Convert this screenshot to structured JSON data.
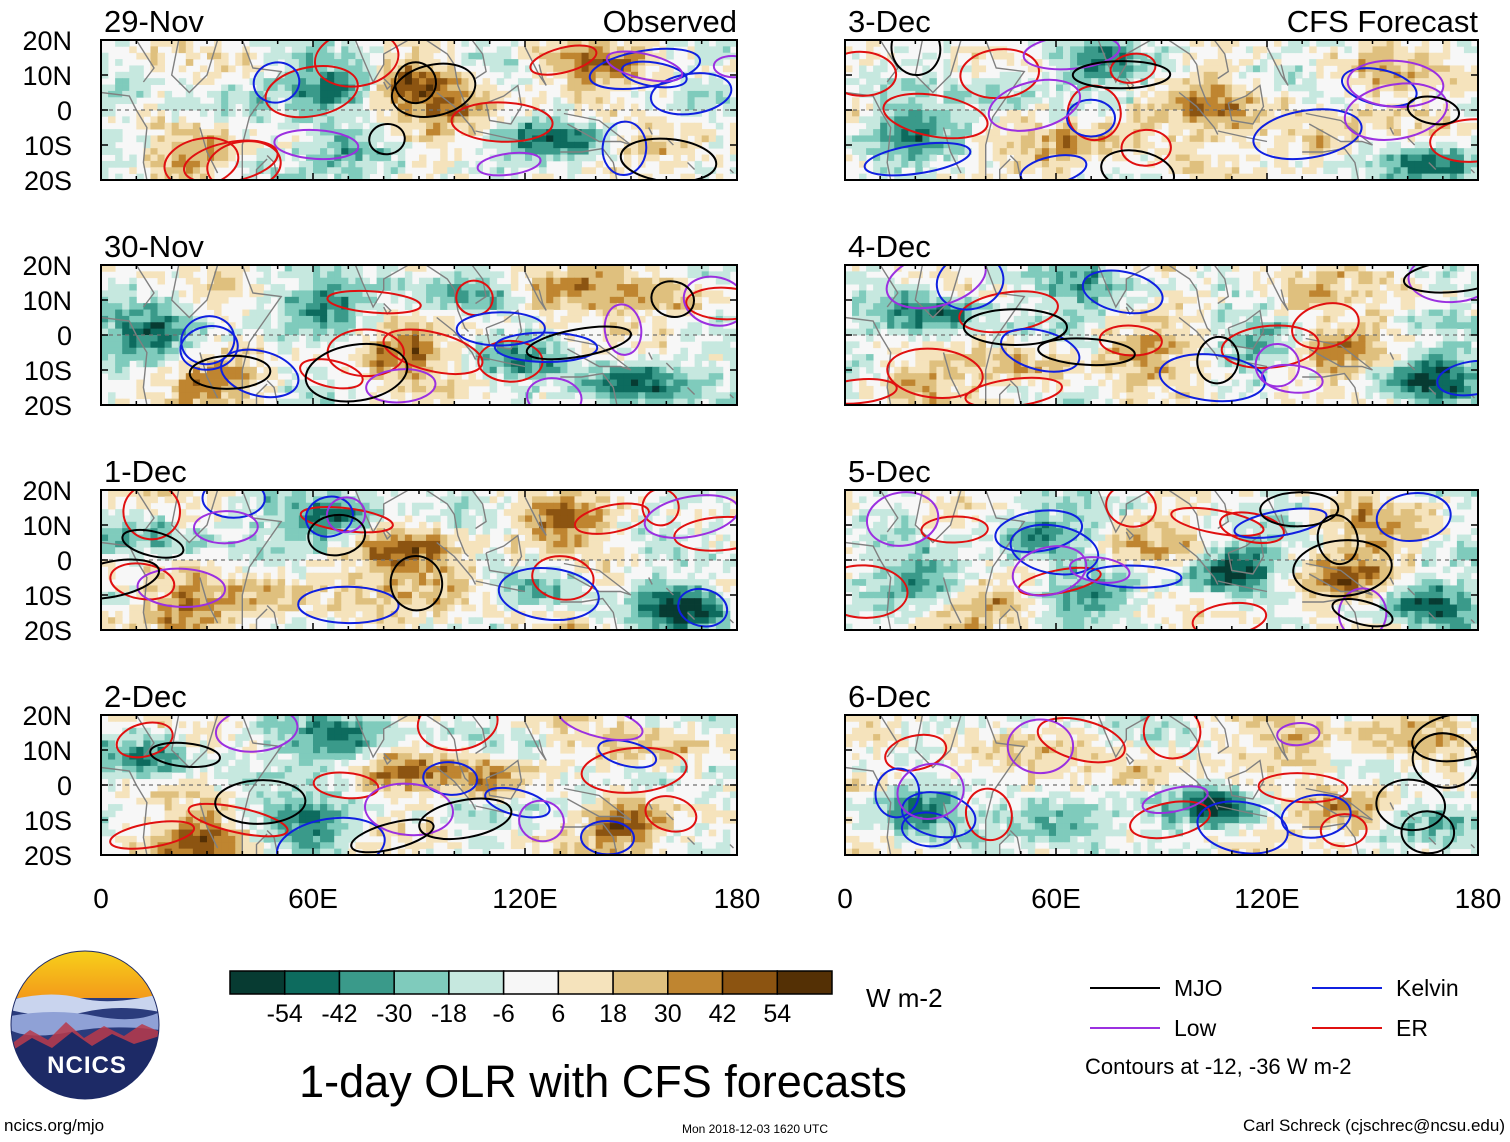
{
  "title": "1-day OLR with CFS forecasts",
  "units": "W m-2",
  "left_label": "Observed",
  "right_label": "CFS Forecast",
  "logo": "NCICS",
  "footer": {
    "url": "ncics.org/mjo",
    "timestamp": "Mon 2018-12-03 1620 UTC",
    "credit": "Carl Schreck (cjschrec@ncsu.edu)"
  },
  "contour_note": "Contours at -12, -36 W m-2",
  "colorbar": {
    "colors": [
      "#073b32",
      "#0d6b5e",
      "#3a9a8a",
      "#7fcbbc",
      "#c6e8df",
      "#f7f7f7",
      "#f5e3bc",
      "#dfc07e",
      "#bf8530",
      "#8c5411",
      "#543005"
    ],
    "labels": [
      "-54",
      "-42",
      "-30",
      "-18",
      "-6",
      "6",
      "18",
      "30",
      "42",
      "54"
    ]
  },
  "legend": [
    {
      "name": "MJO",
      "color": "#000000"
    },
    {
      "name": "Kelvin",
      "color": "#1020e0"
    },
    {
      "name": "Low",
      "color": "#9b30e0"
    },
    {
      "name": "ER",
      "color": "#e01010"
    }
  ],
  "chart_data": {
    "type": "heatmap",
    "variable": "OLR anomaly",
    "units": "W m-2",
    "x_ticks": [
      "0",
      "60E",
      "120E",
      "180"
    ],
    "x_range": [
      0,
      180
    ],
    "y_ticks": [
      "20N",
      "10N",
      "0",
      "10S",
      "20S"
    ],
    "y_range": [
      -20,
      20
    ],
    "contour_levels": [
      -12,
      -36
    ],
    "panels": [
      {
        "date": "29-Nov",
        "source": "Observed",
        "seed": 11,
        "clouds": [
          {
            "lon": 68,
            "lat": 8,
            "val": -48
          },
          {
            "lon": 130,
            "lat": -8,
            "val": -50
          },
          {
            "lon": 75,
            "lat": -12,
            "val": -40
          },
          {
            "lon": 90,
            "lat": 8,
            "val": 40
          },
          {
            "lon": 100,
            "lat": -2,
            "val": 42
          },
          {
            "lon": 140,
            "lat": 12,
            "val": 38
          },
          {
            "lon": 35,
            "lat": 0,
            "val": -20
          },
          {
            "lon": 25,
            "lat": -12,
            "val": 28
          },
          {
            "lon": 160,
            "lat": -12,
            "val": 22
          }
        ]
      },
      {
        "date": "30-Nov",
        "source": "Observed",
        "seed": 23,
        "clouds": [
          {
            "lon": 15,
            "lat": 0,
            "val": -50
          },
          {
            "lon": 150,
            "lat": -14,
            "val": -54
          },
          {
            "lon": 65,
            "lat": 8,
            "val": -40
          },
          {
            "lon": 100,
            "lat": 12,
            "val": -30
          },
          {
            "lon": 130,
            "lat": 12,
            "val": 40
          },
          {
            "lon": 85,
            "lat": -4,
            "val": 38
          },
          {
            "lon": 120,
            "lat": -6,
            "val": -26
          },
          {
            "lon": 30,
            "lat": -14,
            "val": 34
          },
          {
            "lon": 160,
            "lat": 10,
            "val": 24
          }
        ]
      },
      {
        "date": "1-Dec",
        "source": "Observed",
        "seed": 37,
        "clouds": [
          {
            "lon": 65,
            "lat": 12,
            "val": -52
          },
          {
            "lon": 165,
            "lat": -14,
            "val": -54
          },
          {
            "lon": 15,
            "lat": 6,
            "val": -30
          },
          {
            "lon": 125,
            "lat": -6,
            "val": -32
          },
          {
            "lon": 85,
            "lat": 2,
            "val": 46
          },
          {
            "lon": 130,
            "lat": 10,
            "val": 40
          },
          {
            "lon": 100,
            "lat": -8,
            "val": 34
          },
          {
            "lon": 45,
            "lat": -12,
            "val": 26
          },
          {
            "lon": 25,
            "lat": -14,
            "val": 32
          }
        ]
      },
      {
        "date": "2-Dec",
        "source": "Observed",
        "seed": 43,
        "clouds": [
          {
            "lon": 68,
            "lat": 12,
            "val": -54
          },
          {
            "lon": 60,
            "lat": -10,
            "val": -46
          },
          {
            "lon": 15,
            "lat": 8,
            "val": -38
          },
          {
            "lon": 150,
            "lat": -12,
            "val": 50
          },
          {
            "lon": 30,
            "lat": -16,
            "val": 48
          },
          {
            "lon": 110,
            "lat": 2,
            "val": 40
          },
          {
            "lon": 85,
            "lat": 4,
            "val": 36
          },
          {
            "lon": 160,
            "lat": 10,
            "val": 26
          },
          {
            "lon": 135,
            "lat": -2,
            "val": -22
          }
        ]
      },
      {
        "date": "3-Dec",
        "source": "CFS Forecast",
        "seed": 59,
        "clouds": [
          {
            "lon": 20,
            "lat": -6,
            "val": -42
          },
          {
            "lon": 70,
            "lat": 12,
            "val": -38
          },
          {
            "lon": 165,
            "lat": -16,
            "val": -52
          },
          {
            "lon": 105,
            "lat": 0,
            "val": 30
          },
          {
            "lon": 80,
            "lat": -6,
            "val": 26
          },
          {
            "lon": 135,
            "lat": -8,
            "val": 30
          },
          {
            "lon": 150,
            "lat": 10,
            "val": 22
          },
          {
            "lon": 60,
            "lat": -12,
            "val": 22
          },
          {
            "lon": 45,
            "lat": 6,
            "val": -18
          }
        ]
      },
      {
        "date": "4-Dec",
        "source": "CFS Forecast",
        "seed": 67,
        "clouds": [
          {
            "lon": 25,
            "lat": 6,
            "val": -46
          },
          {
            "lon": 70,
            "lat": 12,
            "val": -30
          },
          {
            "lon": 165,
            "lat": -12,
            "val": -54
          },
          {
            "lon": 120,
            "lat": 0,
            "val": -30
          },
          {
            "lon": 85,
            "lat": -4,
            "val": 32
          },
          {
            "lon": 140,
            "lat": -6,
            "val": 34
          },
          {
            "lon": 130,
            "lat": 10,
            "val": 28
          },
          {
            "lon": 20,
            "lat": -14,
            "val": 30
          },
          {
            "lon": 55,
            "lat": -10,
            "val": 20
          }
        ]
      },
      {
        "date": "5-Dec",
        "source": "CFS Forecast",
        "seed": 79,
        "clouds": [
          {
            "lon": 110,
            "lat": -2,
            "val": -54
          },
          {
            "lon": 165,
            "lat": -12,
            "val": -50
          },
          {
            "lon": 25,
            "lat": -4,
            "val": -40
          },
          {
            "lon": 55,
            "lat": 8,
            "val": -40
          },
          {
            "lon": 70,
            "lat": -10,
            "val": -38
          },
          {
            "lon": 140,
            "lat": -6,
            "val": 42
          },
          {
            "lon": 150,
            "lat": 8,
            "val": 30
          },
          {
            "lon": 85,
            "lat": 4,
            "val": 24
          },
          {
            "lon": 40,
            "lat": -14,
            "val": 30
          }
        ]
      },
      {
        "date": "6-Dec",
        "source": "CFS Forecast",
        "seed": 83,
        "clouds": [
          {
            "lon": 105,
            "lat": -6,
            "val": -54
          },
          {
            "lon": 60,
            "lat": -10,
            "val": -44
          },
          {
            "lon": 20,
            "lat": -6,
            "val": -40
          },
          {
            "lon": 170,
            "lat": -10,
            "val": -42
          },
          {
            "lon": 140,
            "lat": -8,
            "val": 44
          },
          {
            "lon": 130,
            "lat": 10,
            "val": 26
          },
          {
            "lon": 85,
            "lat": 2,
            "val": 26
          },
          {
            "lon": 160,
            "lat": 14,
            "val": 22
          },
          {
            "lon": 40,
            "lat": 6,
            "val": 20
          }
        ]
      }
    ]
  }
}
